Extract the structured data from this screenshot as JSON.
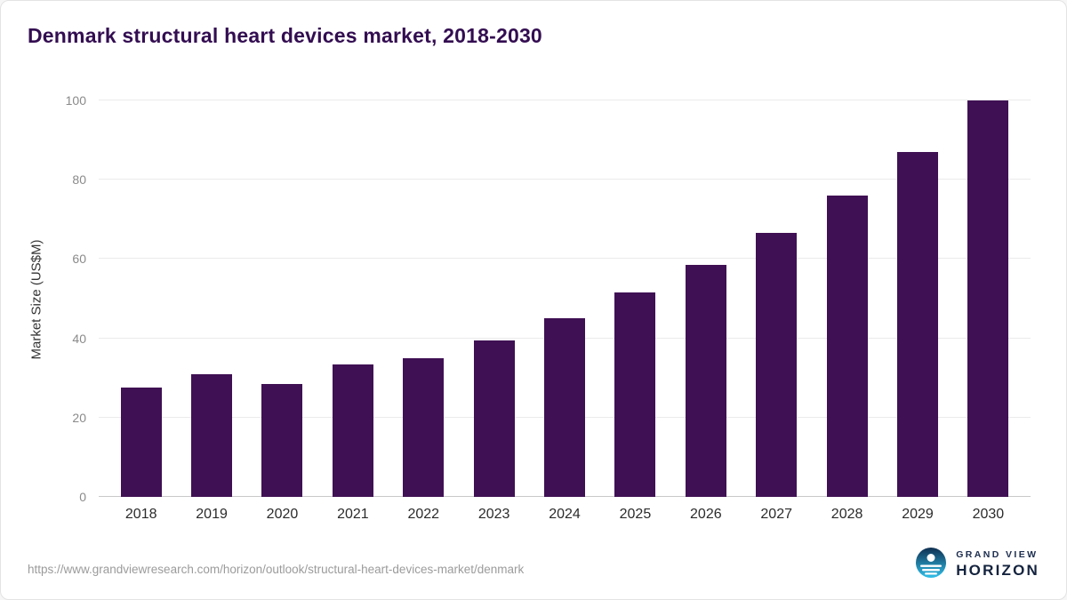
{
  "title": "Denmark structural heart devices market, 2018-2030",
  "source_url": "https://www.grandviewresearch.com/horizon/outlook/structural-heart-devices-market/denmark",
  "logo": {
    "line1": "GRAND VIEW",
    "line2": "HORIZON"
  },
  "chart_data": {
    "type": "bar",
    "categories": [
      "2018",
      "2019",
      "2020",
      "2021",
      "2022",
      "2023",
      "2024",
      "2025",
      "2026",
      "2027",
      "2028",
      "2029",
      "2030"
    ],
    "values": [
      27.5,
      31,
      28.5,
      33.5,
      35,
      39.5,
      45,
      51.5,
      58.5,
      66.5,
      76,
      87,
      100
    ],
    "title": "Denmark structural heart devices market, 2018-2030",
    "xlabel": "",
    "ylabel": "Market Size (US$M)",
    "ylim": [
      0,
      100
    ],
    "yticks": [
      0,
      20,
      40,
      60,
      80,
      100
    ],
    "bar_color": "#3f1053",
    "grid": true,
    "gridline_color": "#ebebeb",
    "legend": "none"
  }
}
